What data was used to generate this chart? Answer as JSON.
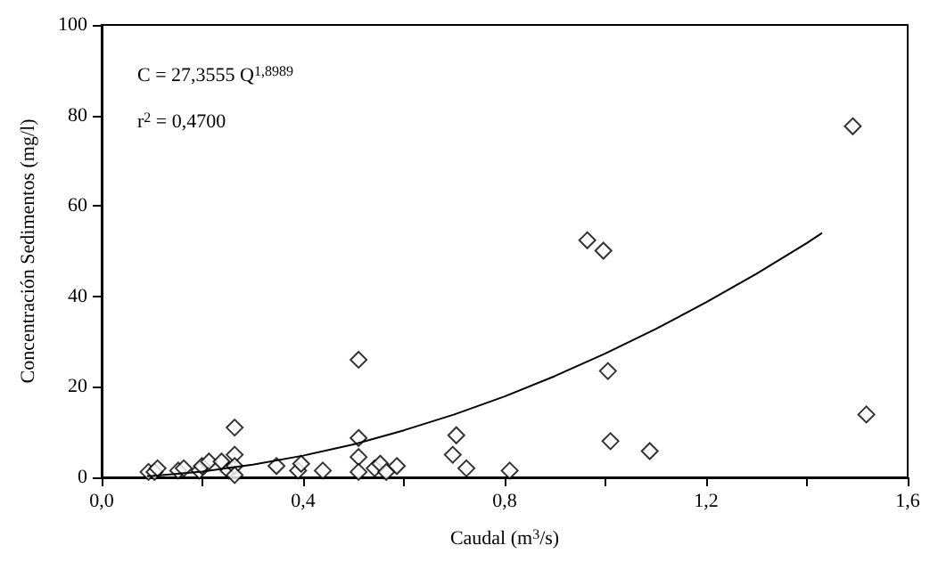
{
  "chart_data": {
    "type": "scatter",
    "xlabel": "Caudal (m$^{3}$/s)",
    "ylabel": "Concentración Sedimentos (mg/l)",
    "annotations": [
      "C = 27,3555 Q$^{1,8989}$",
      "r$^{2}$ = 0,4700"
    ],
    "xlim": [
      0,
      1.6
    ],
    "xticks": [
      {
        "value": 0,
        "label": "0,0"
      },
      {
        "value": 0.2,
        "label": null
      },
      {
        "value": 0.4,
        "label": "0,4"
      },
      {
        "value": 0.6,
        "label": null
      },
      {
        "value": 0.8,
        "label": "0,8"
      },
      {
        "value": 1.0,
        "label": null
      },
      {
        "value": 1.2,
        "label": "1,2"
      },
      {
        "value": 1.4,
        "label": null
      },
      {
        "value": 1.6,
        "label": "1,6"
      }
    ],
    "ylim": [
      0,
      100
    ],
    "yticks": [
      0,
      20,
      40,
      60,
      80,
      100
    ],
    "marker": "diamond",
    "series": [
      {
        "color": "#000000",
        "x": [
          0.093,
          0.105,
          0.111,
          0.152,
          0.163,
          0.194,
          0.199,
          0.213,
          0.238,
          0.252,
          0.264,
          0.264,
          0.264,
          0.264,
          0.347,
          0.39,
          0.396,
          0.439,
          0.51,
          0.51,
          0.51,
          0.51,
          0.542,
          0.553,
          0.565,
          0.586,
          0.704,
          0.697,
          0.724,
          0.81,
          0.964,
          0.996,
          1.005,
          1.01,
          1.088,
          1.491,
          1.518
        ],
        "values": [
          1.2,
          1.2,
          2,
          1.5,
          2,
          1.5,
          2.5,
          3.5,
          3.5,
          1.5,
          11,
          5,
          2.5,
          0.5,
          2.5,
          1.5,
          3,
          1.5,
          26,
          8.7,
          4.5,
          1.2,
          2,
          3,
          1.2,
          2.5,
          9.3,
          5,
          2,
          1.5,
          52.4,
          50.1,
          23.5,
          8,
          5.8,
          77.6,
          13.9
        ]
      },
      {
        "type": "line",
        "color": "#000000",
        "marker": "none",
        "x": [
          0.09,
          0.1,
          0.2,
          0.3,
          0.4,
          0.5,
          0.6,
          0.7,
          0.8,
          0.9,
          1.0,
          1.1,
          1.2,
          1.3,
          1.4,
          1.43
        ],
        "values": [
          0.3,
          0.3,
          1.3,
          2.8,
          4.8,
          7.3,
          10.4,
          13.9,
          17.9,
          22.4,
          27.4,
          32.8,
          38.7,
          45,
          51.8,
          54
        ]
      }
    ]
  }
}
